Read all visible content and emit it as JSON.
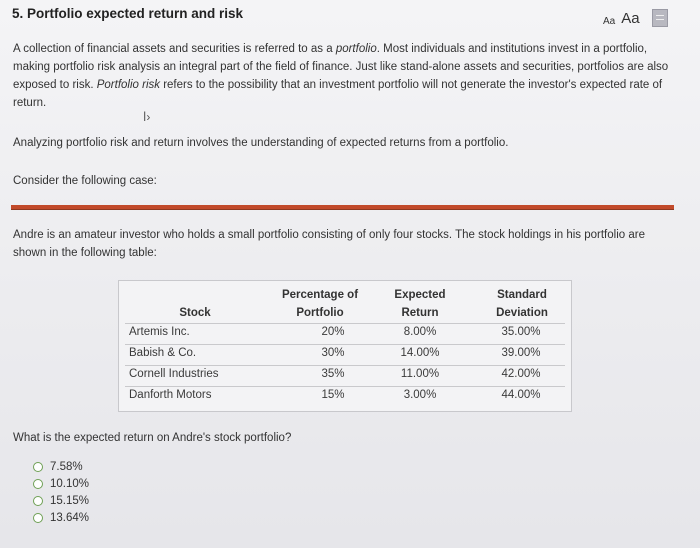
{
  "title": "5. Portfolio expected return and risk",
  "font_controls": {
    "small": "Aa",
    "large": "Aa",
    "doc_icon": "document-icon"
  },
  "paragraphs": {
    "p1_a": "A collection of financial assets and securities is referred to as a ",
    "p1_b": "portfolio",
    "p1_c": ". Most individuals and institutions invest in a portfolio, making portfolio risk analysis an integral part of the field of finance. Just like stand-alone assets and securities, portfolios are also exposed to risk. ",
    "p1_d": "Portfolio risk",
    "p1_e": " refers to the possibility that an investment portfolio will not generate the investor's expected rate of return.",
    "p2": "Analyzing portfolio risk and return involves the understanding of expected returns from a portfolio.",
    "p3": "Consider the following case:",
    "p4": "Andre is an amateur investor who holds a small portfolio consisting of only four stocks. The stock holdings in his portfolio are shown in the following table:"
  },
  "table": {
    "headers": {
      "stock": "Stock",
      "pct_1": "Percentage of",
      "pct_2": "Portfolio",
      "ret_1": "Expected",
      "ret_2": "Return",
      "sd_1": "Standard",
      "sd_2": "Deviation"
    },
    "rows": [
      {
        "name": "Artemis Inc.",
        "pct": "20%",
        "ret": "8.00%",
        "sd": "35.00%"
      },
      {
        "name": "Babish & Co.",
        "pct": "30%",
        "ret": "14.00%",
        "sd": "39.00%"
      },
      {
        "name": "Cornell Industries",
        "pct": "35%",
        "ret": "11.00%",
        "sd": "42.00%"
      },
      {
        "name": "Danforth Motors",
        "pct": "15%",
        "ret": "3.00%",
        "sd": "44.00%"
      }
    ]
  },
  "question": "What is the expected return on Andre's stock portfolio?",
  "options": [
    "7.58%",
    "10.10%",
    "15.15%",
    "13.64%"
  ],
  "colors": {
    "divider": "#c24a2a",
    "radio_border": "#6fa055"
  }
}
